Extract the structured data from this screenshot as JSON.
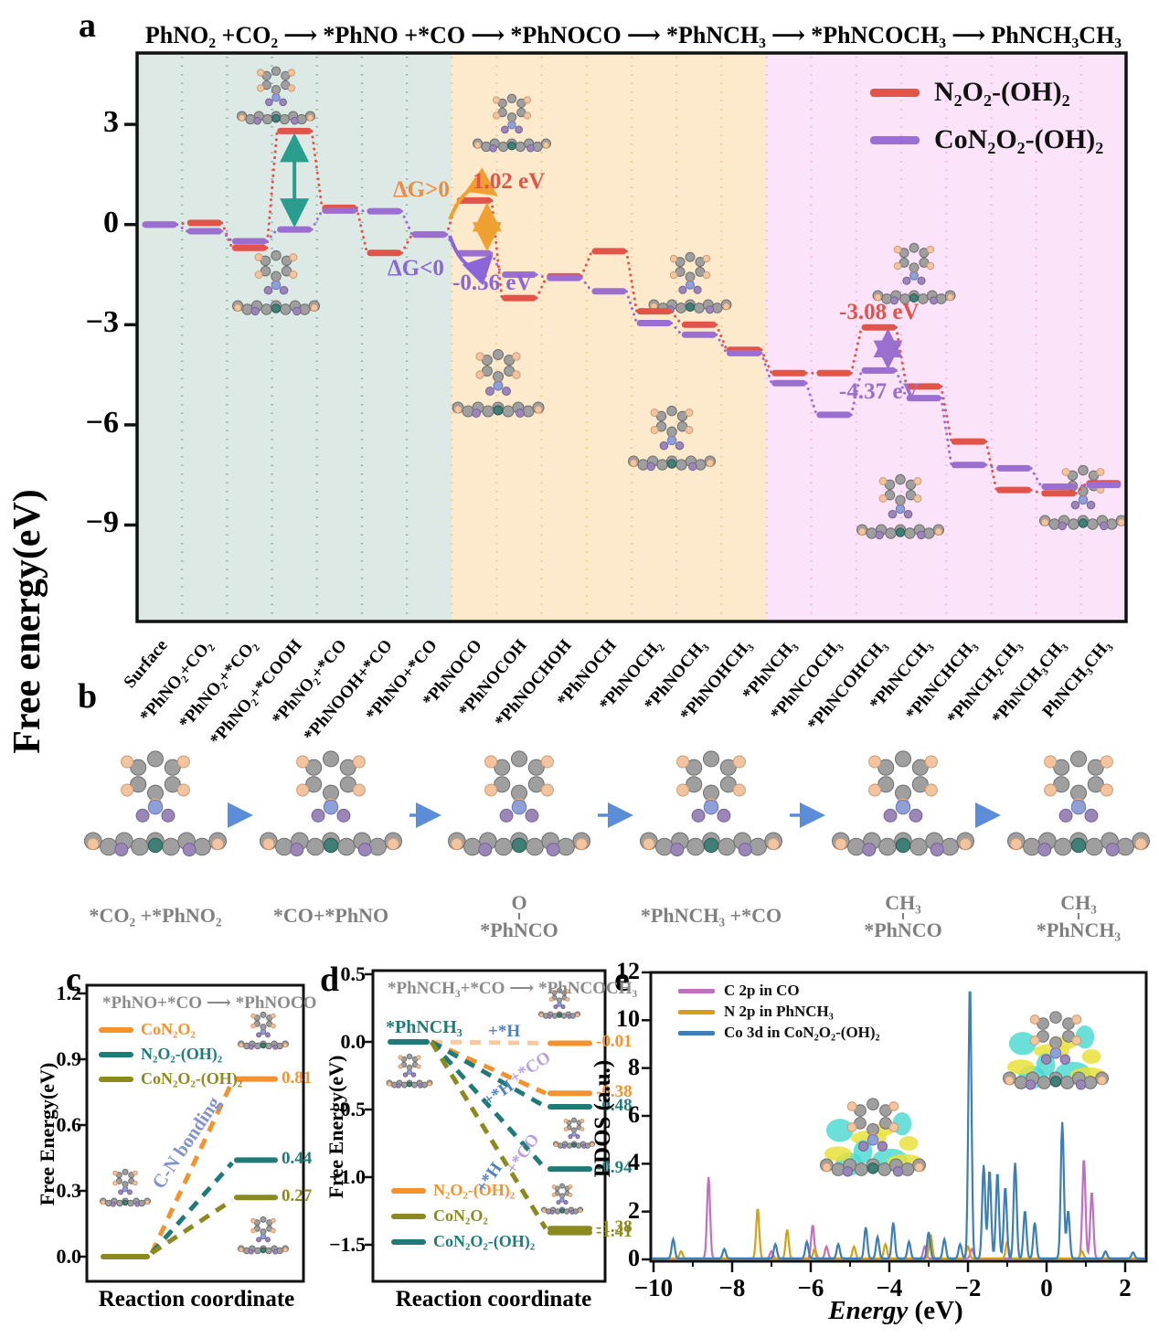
{
  "panels": {
    "a": {
      "letter": "a"
    },
    "b": {
      "letter": "b",
      "arrow_color": "#5b8dd9",
      "label_color": "#7f7f7f",
      "steps": [
        {
          "top": "",
          "label": "*CO₂ +*PhNO₂"
        },
        {
          "top": "",
          "label": "*CO+*PhNO"
        },
        {
          "top": "O",
          "label": "*PhNCO"
        },
        {
          "top": "",
          "label": "*PhNCH₃ +*CO"
        },
        {
          "top": "CH₃",
          "label": "*PhNCO"
        },
        {
          "top": "CH₃",
          "label": "*PhNCH₃"
        }
      ]
    },
    "c": {
      "letter": "c"
    },
    "d": {
      "letter": "d"
    },
    "e": {
      "letter": "e"
    }
  },
  "chart_data": [
    {
      "id": "panel-a",
      "type": "line",
      "title_steps": [
        "PhNO₂ +CO₂",
        "*PhNO +*CO",
        "*PhNOCO",
        "*PhNCH₃",
        "*PhNCOCH₃",
        "PhNCH₃CH₃"
      ],
      "ylabel": "Free energy(eV)",
      "yticks": [
        3,
        0,
        -3,
        -6,
        -9
      ],
      "categories": [
        "Surface",
        "*PhNO₂+CO₂",
        "*PhNO₂+*CO₂",
        "*PhNO₂+*COOH",
        "*PhNO₂+*CO",
        "*PhNOOH+*CO",
        "*PhNO+*CO",
        "*PhNOCO",
        "*PhNOCOH",
        "*PhNOCHOH",
        "*PhNOCH",
        "*PhNOCH₂",
        "*PhNOCH₃",
        "*PhNOHCH₃",
        "*PhNCH₃",
        "*PhNCOCH₃",
        "*PhNCOHCH₃",
        "*PhNCCH₃",
        "*PhNCHCH₃",
        "*PhNCH₂CH₃",
        "*PhNCH₃CH₃",
        "PhNCH₃CH₃"
      ],
      "series": [
        {
          "name": "N₂O₂-(OH)₂",
          "color": "#e0544a",
          "values": [
            0.0,
            0.05,
            -0.7,
            2.8,
            0.5,
            -0.85,
            -0.3,
            0.72,
            -2.2,
            -1.55,
            -0.8,
            -2.6,
            -3.0,
            -3.75,
            -4.45,
            -4.45,
            -3.08,
            -4.85,
            -6.5,
            -7.95,
            -8.05,
            -7.75
          ]
        },
        {
          "name": "CoN₂O₂-(OH)₂",
          "color": "#9a6fcf",
          "values": [
            0.0,
            -0.2,
            -0.5,
            -0.15,
            0.42,
            0.4,
            -0.3,
            -0.86,
            -1.5,
            -1.6,
            -2.0,
            -2.95,
            -3.3,
            -3.85,
            -4.75,
            -5.7,
            -4.37,
            -5.2,
            -7.2,
            -7.3,
            -7.85,
            -7.8
          ]
        }
      ],
      "regions": [
        {
          "from": 0,
          "to": 7,
          "bg": "#dce9e5",
          "grid": "#8fb0b5"
        },
        {
          "from": 7,
          "to": 14,
          "bg": "#fdeacd",
          "grid": "#f0c98c"
        },
        {
          "from": 14,
          "to": 22,
          "bg": "#fbe4f9",
          "grid": "#efb4ec"
        }
      ],
      "annotations": [
        {
          "text": "ΔG>0",
          "color": "#f08c3c"
        },
        {
          "text": "1.02 eV",
          "color": "#e0544a"
        },
        {
          "text": "ΔG<0",
          "color": "#8a66d8"
        },
        {
          "text": "-0.56 eV",
          "color": "#8a66d8"
        },
        {
          "text": "-3.08 eV",
          "color": "#e0544a"
        },
        {
          "text": "-4.37 eV",
          "color": "#9a6fcf"
        }
      ]
    },
    {
      "id": "panel-c",
      "type": "line",
      "title": "*PhNO+*CO ⟶ *PhNOCO",
      "ylabel": "Free Energy(eV)",
      "xlabel": "Reaction coordinate",
      "yticks": [
        "1.2",
        "0.9",
        "0.6",
        "0.3",
        "0.0"
      ],
      "start_value": 0.0,
      "barriers": [
        {
          "name": "CoN₂O₂",
          "color": "#f5922e",
          "value": 0.81,
          "label": "0.81"
        },
        {
          "name": "N₂O₂-(OH)₂",
          "color": "#1f7a78",
          "value": 0.44,
          "label": "0.44"
        },
        {
          "name": "CoN₂O₂-(OH)₂",
          "color": "#8a8a1e",
          "value": 0.27,
          "label": "0.27"
        }
      ],
      "legend": [
        {
          "label": "CoN₂O₂",
          "color": "#f5922e"
        },
        {
          "label": "N₂O₂-(OH)₂",
          "color": "#1f7a78"
        },
        {
          "label": "CoN₂O₂-(OH)₂",
          "color": "#8a8a1e"
        }
      ],
      "annotation": {
        "text": "C-N bonding",
        "color": "#8594c8"
      }
    },
    {
      "id": "panel-d",
      "type": "line",
      "title": "*PhNCH₃+*CO ⟶ *PhNCOCH₃",
      "ylabel": "Free Energy(eV)",
      "xlabel": "Reaction coordinate",
      "yticks": [
        "0.5",
        "0.0",
        "−0.5",
        "−1.0",
        "−1.5"
      ],
      "start_label": "*PhNCH₃",
      "start_value": 0.0,
      "start_color": "#1f7a78",
      "levels": [
        {
          "series": "N₂O₂-(OH)₂",
          "value": -0.01,
          "label": "-0.01",
          "color": "#f5922e",
          "line": "#f6c9a0"
        },
        {
          "series": "N₂O₂-(OH)₂",
          "value": -0.38,
          "label": "-0.38",
          "color": "#f5922e",
          "line": "#f5922e"
        },
        {
          "series": "CoN₂O₂-(OH)₂",
          "value": -0.48,
          "label": "-0.48",
          "color": "#1f7a78",
          "line": "#1f7a78"
        },
        {
          "series": "CoN₂O₂-(OH)₂",
          "value": -0.94,
          "label": "-0.94",
          "color": "#1f7a78",
          "line": "#1f7a78"
        },
        {
          "series": "CoN₂O₂",
          "value": -1.38,
          "label": "-1.38",
          "color": "#8a8a1e",
          "line": "#8a8a1e"
        },
        {
          "series": "CoN₂O₂",
          "value": -1.41,
          "label": "-1.41",
          "color": "#8a8a1e",
          "line": "#8a8a1e"
        }
      ],
      "step_labels": [
        {
          "text": "+*H",
          "color": "#4f81bd"
        },
        {
          "text": "+*CO",
          "color": "#b8a0e0"
        },
        {
          "text": "+*H",
          "color": "#4f81bd"
        },
        {
          "text": "+*CO",
          "color": "#b8a0e0"
        },
        {
          "text": "+*H",
          "color": "#4f81bd"
        }
      ],
      "legend": [
        {
          "label": "N₂O₂-(OH)₂",
          "color": "#f5922e"
        },
        {
          "label": "CoN₂O₂",
          "color": "#8a8a1e"
        },
        {
          "label": "CoN₂O₂-(OH)₂",
          "color": "#1f7a78"
        }
      ]
    },
    {
      "id": "panel-e",
      "type": "line",
      "ylabel": "PDOS (a.u.)",
      "xlabel_italic": "Energy",
      "xlabel_rest": " (eV)",
      "yticks": [
        12,
        10,
        8,
        6,
        4,
        2,
        0
      ],
      "xticks": [
        -10,
        -8,
        -6,
        -4,
        -2,
        0,
        2
      ],
      "xlim": [
        -10.1,
        2.55
      ],
      "ylim": [
        0,
        12
      ],
      "series": [
        {
          "name": "C 2p in CO",
          "color": "#c070c0",
          "peaks": [
            [
              -8.6,
              3.4
            ],
            [
              -7.0,
              0.3
            ],
            [
              -5.95,
              1.4
            ],
            [
              -5.6,
              0.5
            ],
            [
              -3.1,
              0.5
            ],
            [
              -1.9,
              0.4
            ],
            [
              0.95,
              4.2
            ],
            [
              1.15,
              2.8
            ]
          ]
        },
        {
          "name": "N 2p in PhNCH₃",
          "color": "#d4a017",
          "peaks": [
            [
              -9.3,
              0.3
            ],
            [
              -7.35,
              2.1
            ],
            [
              -6.6,
              1.2
            ],
            [
              -5.9,
              0.4
            ],
            [
              -4.9,
              0.5
            ],
            [
              -4.1,
              0.6
            ],
            [
              -2.95,
              1.0
            ],
            [
              -2.0,
              0.5
            ],
            [
              -1.0,
              0.7
            ],
            [
              0.9,
              0.3
            ]
          ]
        },
        {
          "name": "Co 3d in CoN₂O₂-(OH)₂",
          "color": "#3d7fb5",
          "peaks": [
            [
              -9.5,
              0.8
            ],
            [
              -8.2,
              0.4
            ],
            [
              -6.9,
              0.6
            ],
            [
              -6.1,
              0.7
            ],
            [
              -5.3,
              0.6
            ],
            [
              -4.6,
              1.3
            ],
            [
              -4.3,
              0.9
            ],
            [
              -3.9,
              1.5
            ],
            [
              -3.5,
              0.7
            ],
            [
              -3.0,
              1.1
            ],
            [
              -2.6,
              0.8
            ],
            [
              -2.2,
              0.6
            ],
            [
              -1.95,
              11.5
            ],
            [
              -1.6,
              3.9
            ],
            [
              -1.45,
              3.7
            ],
            [
              -1.25,
              3.6
            ],
            [
              -1.05,
              3.0
            ],
            [
              -0.8,
              4.0
            ],
            [
              -0.55,
              2.0
            ],
            [
              -0.3,
              1.5
            ],
            [
              0.4,
              5.7
            ],
            [
              0.55,
              2.0
            ],
            [
              1.5,
              0.3
            ],
            [
              2.2,
              0.25
            ]
          ]
        }
      ]
    }
  ]
}
